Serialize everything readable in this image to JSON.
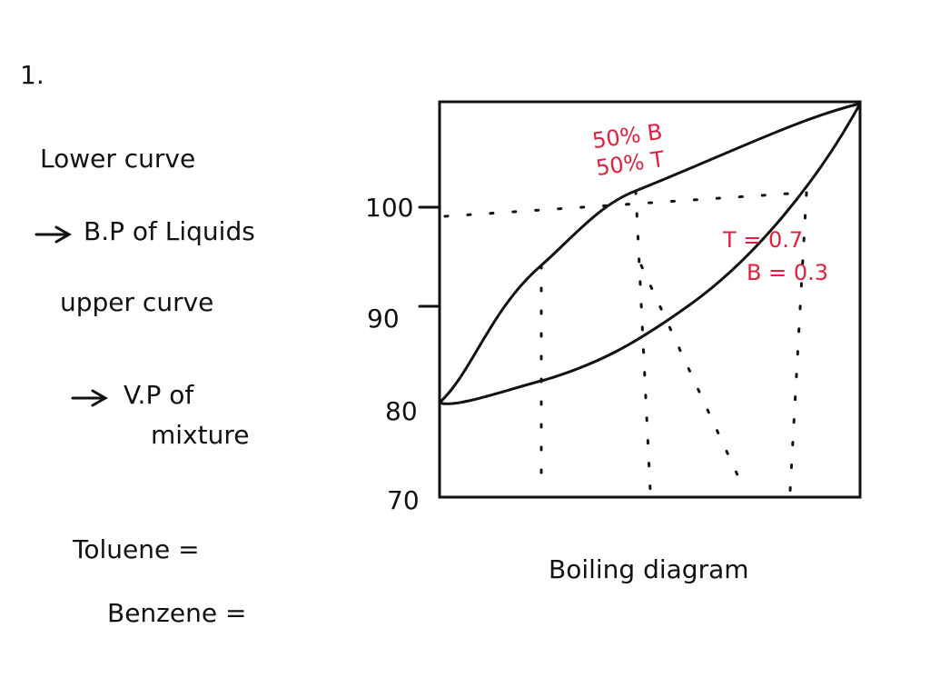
{
  "question": {
    "number": "1."
  },
  "notes": {
    "lower_curve": {
      "heading": "Lower curve",
      "meaning": "B.P of Liquids"
    },
    "upper_curve": {
      "heading": "upper curve",
      "meaning": "V.P of",
      "meaning_line2": "mixture"
    },
    "toluene": "Toluene =",
    "benzene": "Benzene ="
  },
  "diagram": {
    "caption": "Boiling diagram",
    "y_labels": [
      "100",
      "90",
      "80",
      "70"
    ],
    "annotations": {
      "mid_b": "50% B",
      "mid_t": "50% T",
      "t_frac": "T = 0.7",
      "b_frac": "B = 0.3"
    }
  }
}
